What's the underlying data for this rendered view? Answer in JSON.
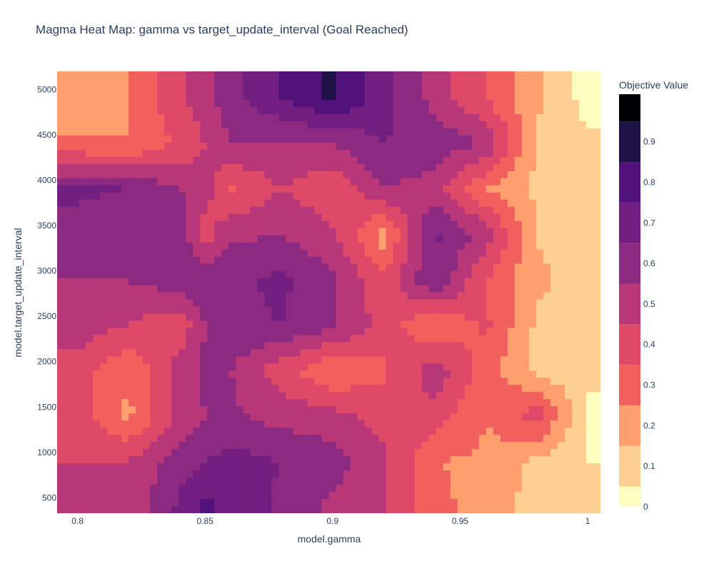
{
  "chart_data": {
    "type": "heatmap",
    "title": "Magma Heat Map: gamma vs target_update_interval (Goal Reached)",
    "xlabel": "model.gamma",
    "ylabel": "model.target_update_interval",
    "colorbar_title": "Objective Value",
    "xlim": [
      0.792,
      1.005
    ],
    "ylim": [
      330,
      5200
    ],
    "x_ticks": [
      {
        "v": 0.8,
        "label": "0.8"
      },
      {
        "v": 0.85,
        "label": "0.85"
      },
      {
        "v": 0.9,
        "label": "0.9"
      },
      {
        "v": 0.95,
        "label": "0.95"
      },
      {
        "v": 1.0,
        "label": "1"
      }
    ],
    "y_ticks": [
      {
        "v": 500,
        "label": "500"
      },
      {
        "v": 1000,
        "label": "1000"
      },
      {
        "v": 1500,
        "label": "1500"
      },
      {
        "v": 2000,
        "label": "2000"
      },
      {
        "v": 2500,
        "label": "2500"
      },
      {
        "v": 3000,
        "label": "3000"
      },
      {
        "v": 3500,
        "label": "3500"
      },
      {
        "v": 4000,
        "label": "4000"
      },
      {
        "v": 4500,
        "label": "4500"
      },
      {
        "v": 5000,
        "label": "5000"
      }
    ],
    "colorscale": [
      "#fcfdbf",
      "#fecf92",
      "#fe9f6d",
      "#f1605d",
      "#de4968",
      "#b73779",
      "#8c2981",
      "#721f81",
      "#51127c",
      "#1d1147",
      "#000004"
    ],
    "colorbar_range": [
      0,
      1
    ],
    "colorbar_ticks": [
      "0",
      "0.1",
      "0.2",
      "0.3",
      "0.4",
      "0.5",
      "0.6",
      "0.7",
      "0.8",
      "0.9"
    ],
    "x": [
      0.8,
      0.82,
      0.84,
      0.85,
      0.86,
      0.88,
      0.9,
      0.92,
      0.94,
      0.96,
      0.98,
      1.0
    ],
    "y": [
      400,
      900,
      1400,
      1900,
      2400,
      2900,
      3400,
      3900,
      4400,
      4900
    ],
    "z": [
      [
        0.5,
        0.52,
        0.72,
        0.82,
        0.78,
        0.68,
        0.58,
        0.5,
        0.35,
        0.22,
        0.18,
        0.12
      ],
      [
        0.5,
        0.5,
        0.66,
        0.7,
        0.74,
        0.7,
        0.64,
        0.52,
        0.3,
        0.28,
        0.17,
        0.1
      ],
      [
        0.45,
        0.28,
        0.52,
        0.6,
        0.62,
        0.56,
        0.54,
        0.46,
        0.46,
        0.3,
        0.46,
        0.08
      ],
      [
        0.46,
        0.3,
        0.55,
        0.62,
        0.6,
        0.44,
        0.3,
        0.38,
        0.56,
        0.35,
        0.18,
        0.12
      ],
      [
        0.55,
        0.5,
        0.42,
        0.6,
        0.68,
        0.7,
        0.62,
        0.46,
        0.3,
        0.42,
        0.18,
        0.16
      ],
      [
        0.6,
        0.6,
        0.66,
        0.7,
        0.68,
        0.72,
        0.62,
        0.42,
        0.7,
        0.4,
        0.22,
        0.16
      ],
      [
        0.66,
        0.62,
        0.66,
        0.44,
        0.58,
        0.6,
        0.52,
        0.25,
        0.72,
        0.56,
        0.2,
        0.1
      ],
      [
        0.72,
        0.7,
        0.6,
        0.55,
        0.38,
        0.5,
        0.42,
        0.6,
        0.55,
        0.3,
        0.18,
        0.1
      ],
      [
        0.32,
        0.3,
        0.42,
        0.5,
        0.6,
        0.58,
        0.6,
        0.7,
        0.66,
        0.6,
        0.18,
        0.12
      ],
      [
        0.22,
        0.3,
        0.48,
        0.56,
        0.66,
        0.8,
        0.92,
        0.74,
        0.56,
        0.4,
        0.22,
        0.06
      ]
    ]
  }
}
